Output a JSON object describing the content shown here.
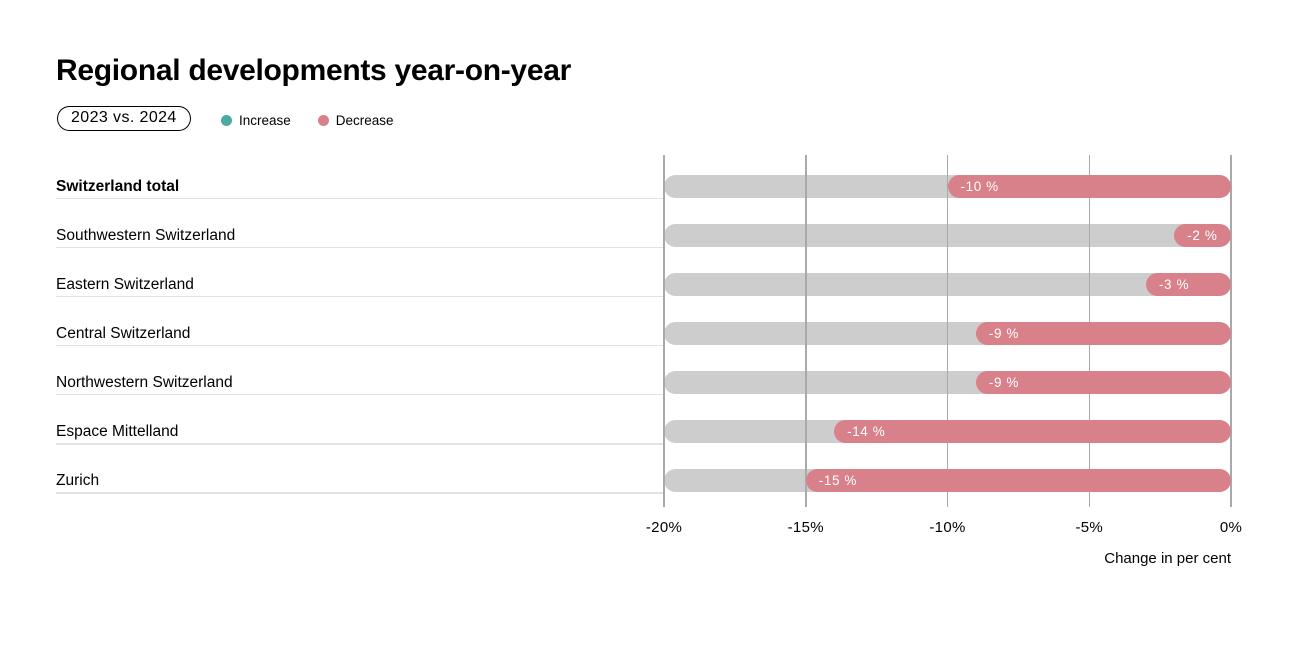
{
  "header": {
    "title": "Regional developments year-on-year",
    "badge": "2023 vs. 2024"
  },
  "legend": {
    "increase": {
      "label": "Increase"
    },
    "decrease": {
      "label": "Decrease"
    }
  },
  "chart_data": {
    "type": "bar",
    "orientation": "horizontal",
    "categories": [
      "Switzerland total",
      "Southwestern Switzerland",
      "Eastern Switzerland",
      "Central Switzerland",
      "Northwestern Switzerland",
      "Espace Mittelland",
      "Zurich"
    ],
    "values": [
      -10,
      -2,
      -3,
      -9,
      -9,
      -14,
      -15
    ],
    "value_labels": [
      "-10 %",
      "-2 %",
      "-3 %",
      "-9 %",
      "-9 %",
      "-14 %",
      "-15 %"
    ],
    "categories_bold": [
      true,
      false,
      false,
      false,
      false,
      false,
      false
    ],
    "x_ticks": [
      "-20%",
      "-15%",
      "-10%",
      "-5%",
      "0%"
    ],
    "x_tick_values": [
      -20,
      -15,
      -10,
      -5,
      0
    ],
    "xlim": [
      -20,
      0
    ],
    "xlabel": "Change in per cent",
    "grid": true,
    "legend_position": "top-left"
  },
  "colors": {
    "bar_decrease": "#d8818b",
    "bar_increase": "#4aaba0",
    "track": "#cdcdcd",
    "gridline": "#a9a9a9",
    "row_rule": "#e2e2e2",
    "text": "#000000",
    "value_text": "#ffffff"
  }
}
